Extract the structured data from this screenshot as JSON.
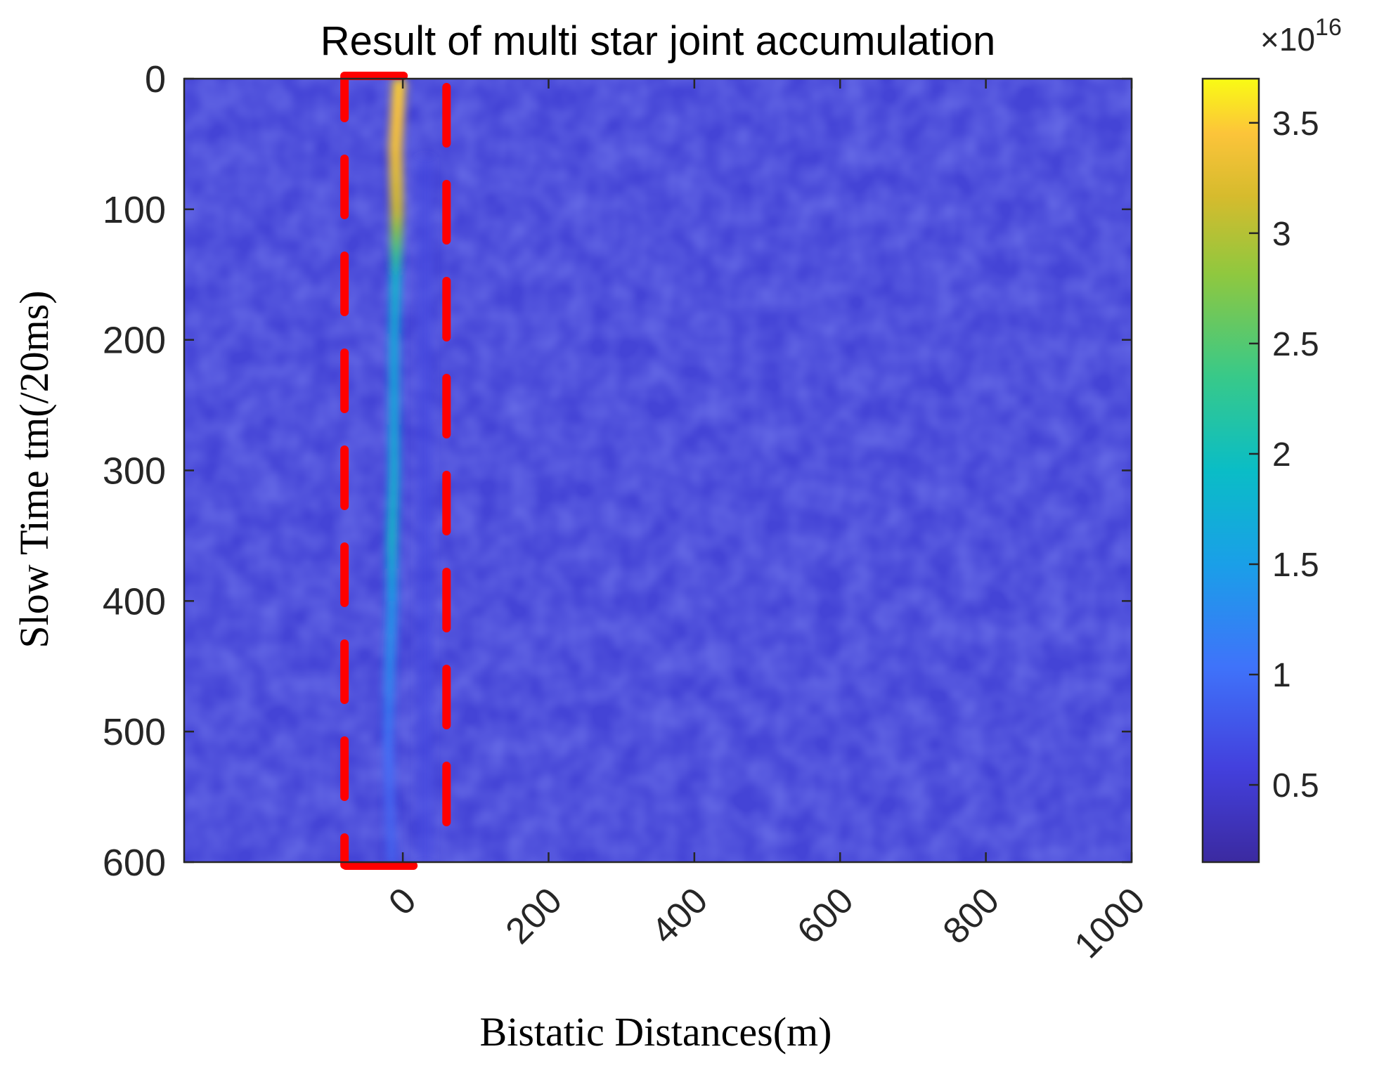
{
  "chart_data": {
    "type": "heatmap",
    "title": "Result of multi star joint accumulation",
    "xlabel": "Bistatic Distances(m)",
    "ylabel": "Slow Time tm(/20ms)",
    "x_ticks": [
      "0",
      "200",
      "400",
      "600",
      "800",
      "1000"
    ],
    "x_tick_values": [
      0,
      200,
      400,
      600,
      800,
      1000
    ],
    "y_ticks": [
      "0",
      "100",
      "200",
      "300",
      "400",
      "500",
      "600"
    ],
    "y_tick_values": [
      0,
      100,
      200,
      300,
      400,
      500,
      600
    ],
    "xlim": [
      -300,
      1000
    ],
    "ylim": [
      600,
      0
    ],
    "y_axis_reversed": true,
    "colormap": "parula",
    "background_value": 3000000000000000.0,
    "colorbar": {
      "ticks": [
        "0.5",
        "1",
        "1.5",
        "2",
        "2.5",
        "3",
        "3.5"
      ],
      "tick_values": [
        0.5,
        1,
        1.5,
        2,
        2.5,
        3,
        3.5
      ],
      "exponent_label": "×10",
      "exponent": "16",
      "range": [
        0.15,
        3.7
      ]
    },
    "ridge": {
      "description_units": "x in m, y in slow-time index, value ×10^16",
      "points": [
        {
          "y": 0,
          "x": -5,
          "value": 3.5
        },
        {
          "y": 50,
          "x": -10,
          "value": 3.4
        },
        {
          "y": 100,
          "x": -8,
          "value": 3.1
        },
        {
          "y": 150,
          "x": -10,
          "value": 1.9
        },
        {
          "y": 200,
          "x": -12,
          "value": 1.7
        },
        {
          "y": 250,
          "x": -12,
          "value": 1.7
        },
        {
          "y": 300,
          "x": -12,
          "value": 1.8
        },
        {
          "y": 350,
          "x": -15,
          "value": 1.9
        },
        {
          "y": 400,
          "x": -15,
          "value": 1.5
        },
        {
          "y": 450,
          "x": -18,
          "value": 1.35
        },
        {
          "y": 500,
          "x": -20,
          "value": 1.1
        },
        {
          "y": 550,
          "x": -18,
          "value": 0.95
        },
        {
          "y": 600,
          "x": -15,
          "value": 0.9
        }
      ]
    },
    "highlight_box": {
      "x_range": [
        -80,
        60
      ],
      "y_range": [
        0,
        600
      ],
      "color": "#ff0000",
      "style": "dashed"
    }
  }
}
